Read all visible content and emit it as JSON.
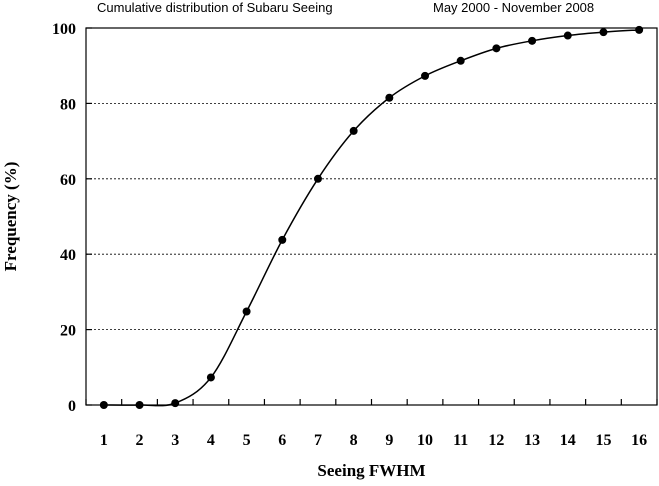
{
  "chart_data": {
    "type": "line",
    "title": "Cumulative distribution of Subaru Seeing",
    "subtitle": "May 2000 - November 2008",
    "xlabel": "Seeing FWHM",
    "ylabel": "Frequency (%)",
    "x": [
      1,
      2,
      3,
      4,
      5,
      6,
      7,
      8,
      9,
      10,
      11,
      12,
      13,
      14,
      15,
      16
    ],
    "series": [
      {
        "values": [
          0,
          0,
          0.5,
          7.3,
          24.8,
          43.8,
          60.0,
          72.7,
          81.5,
          87.3,
          91.3,
          94.6,
          96.6,
          98.0,
          98.9,
          99.5
        ]
      }
    ],
    "x_ticks": [
      "1",
      "2",
      "3",
      "4",
      "5",
      "6",
      "7",
      "8",
      "9",
      "10",
      "11",
      "12",
      "13",
      "14",
      "15",
      "16"
    ],
    "y_ticks": [
      "0",
      "20",
      "40",
      "60",
      "80",
      "100"
    ],
    "xlim": [
      0.5,
      16.5
    ],
    "ylim": [
      0,
      100
    ],
    "grid": "horizontal dashed",
    "legend": "none",
    "colors": {
      "line": "#000000",
      "marker": "#000000",
      "grid": "#000000"
    }
  }
}
